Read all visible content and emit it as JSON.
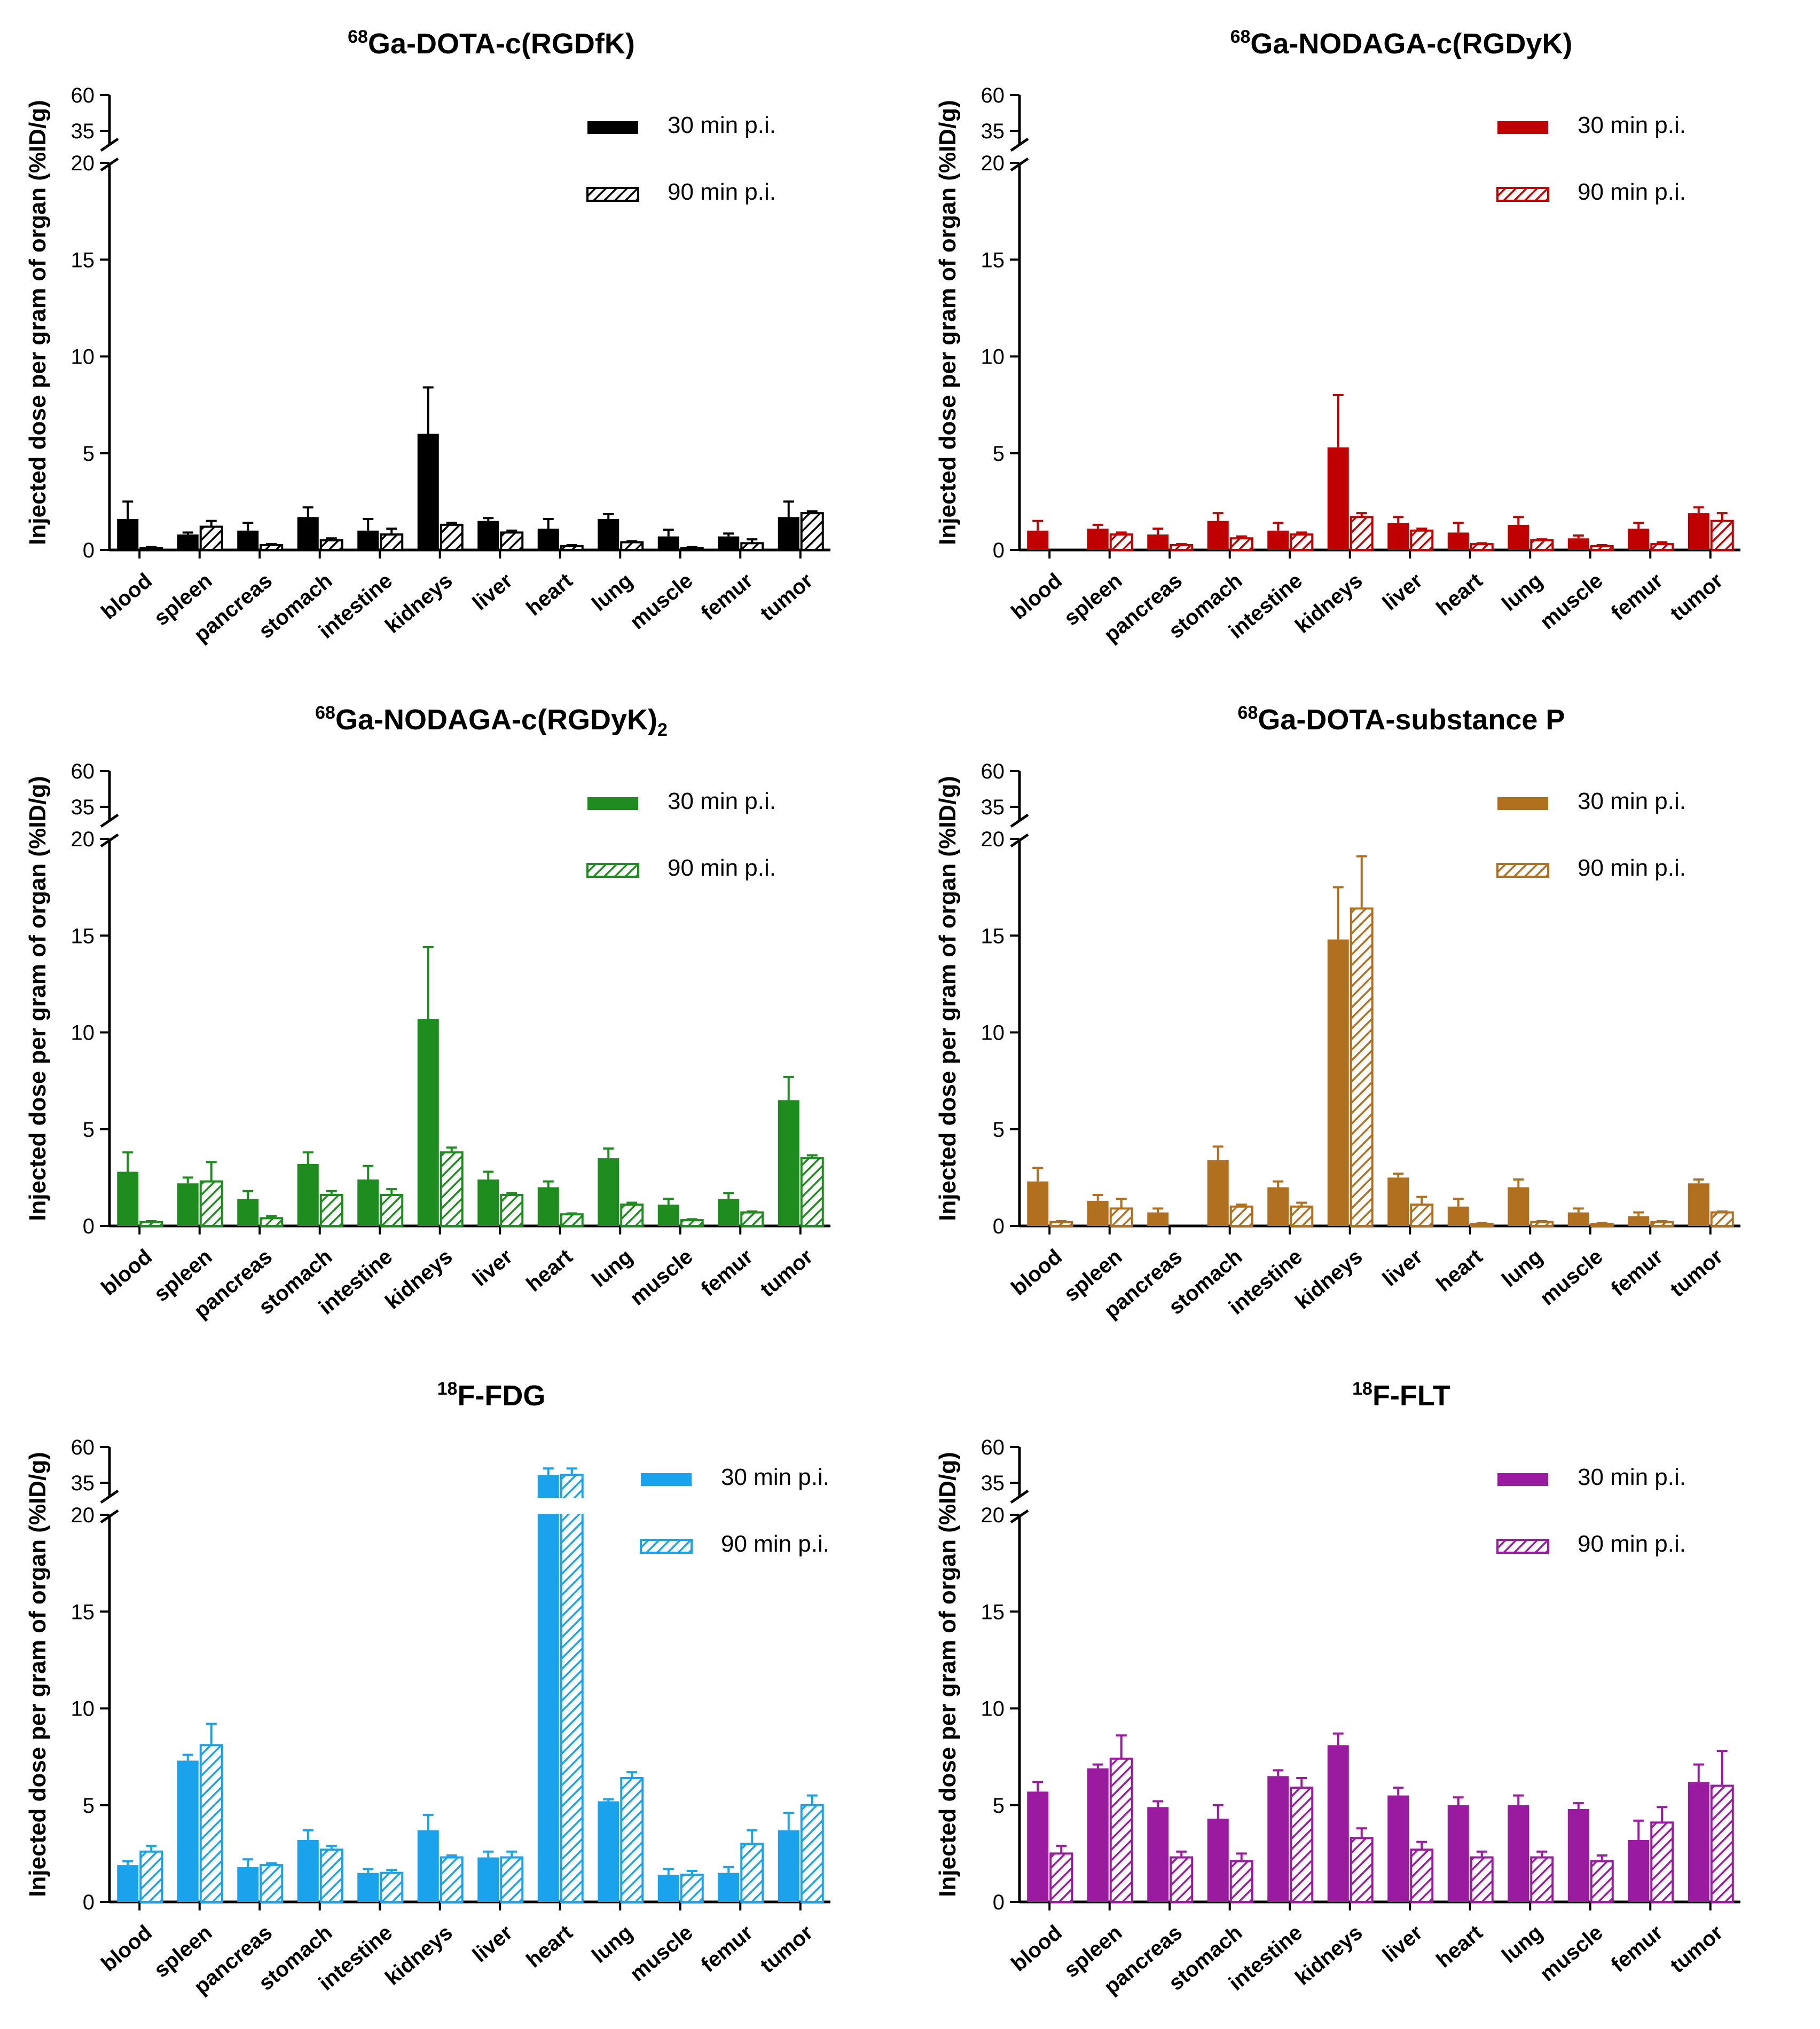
{
  "figure": {
    "y_axis_label": "Injected dose per gram of organ (%ID/g)",
    "axis_break": {
      "low_top": 20,
      "high_bottom": 35,
      "high_top": 60
    },
    "y_ticks": [
      "0",
      "5",
      "10",
      "15",
      "20",
      "35",
      "60"
    ]
  },
  "chart_data": [
    {
      "type": "bar",
      "title_sup": "68",
      "title_main": "Ga-DOTA-c(RGDfK)",
      "title_sub": "",
      "color": "#000000",
      "categories": [
        "blood",
        "spleen",
        "pancreas",
        "stomach",
        "intestine",
        "kidneys",
        "liver",
        "heart",
        "lung",
        "muscle",
        "femur",
        "tumor"
      ],
      "series": [
        {
          "name": "30 min p.i.",
          "values": [
            1.6,
            0.8,
            1.0,
            1.7,
            1.0,
            6.0,
            1.5,
            1.1,
            1.6,
            0.7,
            0.7,
            1.7
          ],
          "errors": [
            0.9,
            0.1,
            0.4,
            0.5,
            0.6,
            2.4,
            0.15,
            0.5,
            0.25,
            0.35,
            0.15,
            0.8
          ]
        },
        {
          "name": "90 min p.i.",
          "values": [
            0.1,
            1.2,
            0.25,
            0.5,
            0.8,
            1.3,
            0.9,
            0.2,
            0.4,
            0.1,
            0.35,
            1.9
          ],
          "errors": [
            0.05,
            0.3,
            0.05,
            0.1,
            0.3,
            0.1,
            0.1,
            0.05,
            0.05,
            0.05,
            0.2,
            0.1
          ]
        }
      ],
      "ylim": [
        0,
        60
      ],
      "ylabel": "Injected dose per gram of organ (%ID/g)"
    },
    {
      "type": "bar",
      "title_sup": "68",
      "title_main": "Ga-NODAGA-c(RGDyK)",
      "title_sub": "",
      "color": "#c00000",
      "categories": [
        "blood",
        "spleen",
        "pancreas",
        "stomach",
        "intestine",
        "kidneys",
        "liver",
        "heart",
        "lung",
        "muscle",
        "femur",
        "tumor"
      ],
      "series": [
        {
          "name": "30 min p.i.",
          "values": [
            1.0,
            1.1,
            0.8,
            1.5,
            1.0,
            5.3,
            1.4,
            0.9,
            1.3,
            0.6,
            1.1,
            1.9
          ],
          "errors": [
            0.5,
            0.2,
            0.3,
            0.4,
            0.4,
            2.7,
            0.3,
            0.5,
            0.4,
            0.15,
            0.3,
            0.3
          ]
        },
        {
          "name": "90 min p.i.",
          "values": [
            0.0,
            0.8,
            0.25,
            0.6,
            0.8,
            1.7,
            1.0,
            0.3,
            0.5,
            0.2,
            0.3,
            1.5
          ],
          "errors": [
            0.0,
            0.1,
            0.05,
            0.1,
            0.1,
            0.2,
            0.1,
            0.05,
            0.05,
            0.05,
            0.1,
            0.4
          ]
        }
      ],
      "ylim": [
        0,
        60
      ],
      "ylabel": "Injected dose per gram of organ (%ID/g)"
    },
    {
      "type": "bar",
      "title_sup": "68",
      "title_main": "Ga-NODAGA-c(RGDyK)",
      "title_sub": "2",
      "color": "#1e8c1e",
      "categories": [
        "blood",
        "spleen",
        "pancreas",
        "stomach",
        "intestine",
        "kidneys",
        "liver",
        "heart",
        "lung",
        "muscle",
        "femur",
        "tumor"
      ],
      "series": [
        {
          "name": "30 min p.i.",
          "values": [
            2.8,
            2.2,
            1.4,
            3.2,
            2.4,
            10.7,
            2.4,
            2.0,
            3.5,
            1.1,
            1.4,
            6.5
          ],
          "errors": [
            1.0,
            0.3,
            0.4,
            0.6,
            0.7,
            3.7,
            0.4,
            0.3,
            0.5,
            0.3,
            0.3,
            1.2
          ]
        },
        {
          "name": "90 min p.i.",
          "values": [
            0.2,
            2.3,
            0.4,
            1.6,
            1.6,
            3.8,
            1.6,
            0.6,
            1.1,
            0.3,
            0.7,
            3.5
          ],
          "errors": [
            0.05,
            1.0,
            0.1,
            0.2,
            0.3,
            0.25,
            0.1,
            0.05,
            0.1,
            0.05,
            0.05,
            0.15
          ]
        }
      ],
      "ylim": [
        0,
        60
      ],
      "ylabel": "Injected dose per gram of organ (%ID/g)"
    },
    {
      "type": "bar",
      "title_sup": "68",
      "title_main": "Ga-DOTA-substance P",
      "title_sub": "",
      "color": "#b07020",
      "categories": [
        "blood",
        "spleen",
        "pancreas",
        "stomach",
        "intestine",
        "kidneys",
        "liver",
        "heart",
        "lung",
        "muscle",
        "femur",
        "tumor"
      ],
      "series": [
        {
          "name": "30 min p.i.",
          "values": [
            2.3,
            1.3,
            0.7,
            3.4,
            2.0,
            14.8,
            2.5,
            1.0,
            2.0,
            0.7,
            0.5,
            2.2
          ],
          "errors": [
            0.7,
            0.3,
            0.2,
            0.7,
            0.3,
            2.7,
            0.2,
            0.4,
            0.4,
            0.2,
            0.2,
            0.2
          ]
        },
        {
          "name": "90 min p.i.",
          "values": [
            0.2,
            0.9,
            0.0,
            1.0,
            1.0,
            16.4,
            1.1,
            0.1,
            0.2,
            0.1,
            0.2,
            0.7
          ],
          "errors": [
            0.05,
            0.5,
            0.0,
            0.1,
            0.2,
            2.7,
            0.4,
            0.05,
            0.05,
            0.05,
            0.05,
            0.05
          ]
        }
      ],
      "ylim": [
        0,
        60
      ],
      "ylabel": "Injected dose per gram of organ (%ID/g)"
    },
    {
      "type": "bar",
      "title_sup": "18",
      "title_main": "F-FDG",
      "title_sub": "",
      "color": "#1aa3ec",
      "categories": [
        "blood",
        "spleen",
        "pancreas",
        "stomach",
        "intestine",
        "kidneys",
        "liver",
        "heart",
        "lung",
        "muscle",
        "femur",
        "tumor"
      ],
      "series": [
        {
          "name": "30 min p.i.",
          "values": [
            1.9,
            7.3,
            1.8,
            3.2,
            1.5,
            3.7,
            2.3,
            40.5,
            5.2,
            1.4,
            1.5,
            3.7
          ],
          "errors": [
            0.2,
            0.3,
            0.4,
            0.5,
            0.2,
            0.8,
            0.3,
            4.5,
            0.1,
            0.3,
            0.3,
            0.9
          ]
        },
        {
          "name": "90 min p.i.",
          "values": [
            2.6,
            8.1,
            1.9,
            2.7,
            1.5,
            2.3,
            2.3,
            40.5,
            6.4,
            1.4,
            3.0,
            5.0
          ],
          "errors": [
            0.3,
            1.1,
            0.1,
            0.2,
            0.15,
            0.1,
            0.3,
            4.5,
            0.3,
            0.2,
            0.7,
            0.5
          ]
        }
      ],
      "ylim": [
        0,
        60
      ],
      "ylabel": "Injected dose per gram of organ (%ID/g)"
    },
    {
      "type": "bar",
      "title_sup": "18",
      "title_main": "F-FLT",
      "title_sub": "",
      "color": "#9a1aa0",
      "categories": [
        "blood",
        "spleen",
        "pancreas",
        "stomach",
        "intestine",
        "kidneys",
        "liver",
        "heart",
        "lung",
        "muscle",
        "femur",
        "tumor"
      ],
      "series": [
        {
          "name": "30 min p.i.",
          "values": [
            5.7,
            6.9,
            4.9,
            4.3,
            6.5,
            8.1,
            5.5,
            5.0,
            5.0,
            4.8,
            3.2,
            6.2
          ],
          "errors": [
            0.5,
            0.2,
            0.3,
            0.7,
            0.3,
            0.6,
            0.4,
            0.4,
            0.5,
            0.3,
            1.0,
            0.9
          ]
        },
        {
          "name": "90 min p.i.",
          "values": [
            2.5,
            7.4,
            2.3,
            2.1,
            5.9,
            3.3,
            2.7,
            2.3,
            2.3,
            2.1,
            4.1,
            6.0
          ],
          "errors": [
            0.4,
            1.2,
            0.3,
            0.4,
            0.5,
            0.5,
            0.4,
            0.3,
            0.3,
            0.3,
            0.8,
            1.8
          ]
        }
      ],
      "ylim": [
        0,
        60
      ],
      "ylabel": "Injected dose per gram of organ (%ID/g)"
    }
  ]
}
